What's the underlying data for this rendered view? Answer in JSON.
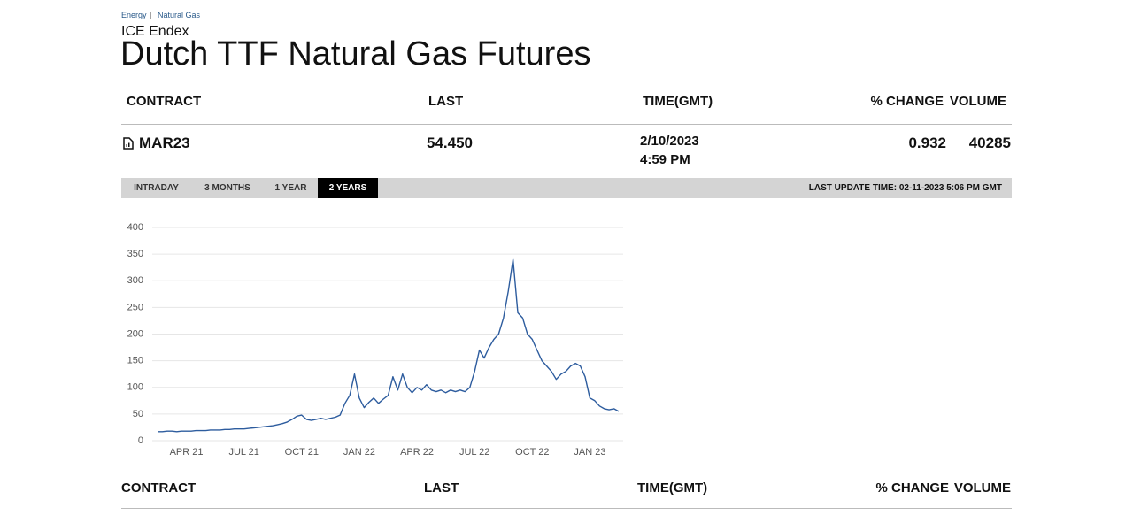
{
  "breadcrumb": [
    "Energy",
    "Natural Gas"
  ],
  "exchange": "ICE Endex",
  "title": "Dutch TTF Natural Gas Futures",
  "table": {
    "headers": [
      "CONTRACT",
      "LAST",
      "TIME(GMT)",
      "% CHANGE",
      "VOLUME"
    ],
    "rows": [
      {
        "contract": "MAR23",
        "last": "54.450",
        "time": [
          "2/10/2023",
          "4:59 PM"
        ],
        "change": "0.932",
        "volume": "40285"
      }
    ]
  },
  "tabs": [
    "INTRADAY",
    "3 MONTHS",
    "1 YEAR",
    "2 YEARS"
  ],
  "active_tab": 3,
  "last_update": "LAST UPDATE TIME: 02-11-2023 5:06 PM GMT",
  "chart_data": {
    "type": "line",
    "color": "#2d5c9e",
    "grid": true,
    "categories": [
      null,
      null,
      null,
      null,
      null,
      null,
      "APR 21",
      null,
      null,
      null,
      null,
      null,
      null,
      null,
      null,
      null,
      null,
      null,
      "JUL 21",
      null,
      null,
      null,
      null,
      null,
      null,
      null,
      null,
      null,
      null,
      null,
      "OCT 21",
      null,
      null,
      null,
      null,
      null,
      null,
      null,
      null,
      null,
      null,
      null,
      "JAN 22",
      null,
      null,
      null,
      null,
      null,
      null,
      null,
      null,
      null,
      null,
      null,
      "APR 22",
      null,
      null,
      null,
      null,
      null,
      null,
      null,
      null,
      null,
      null,
      null,
      "JUL 22",
      null,
      null,
      null,
      null,
      null,
      null,
      null,
      null,
      null,
      null,
      null,
      "OCT 22",
      null,
      null,
      null,
      null,
      null,
      null,
      null,
      null,
      null,
      null,
      null,
      "JAN 23",
      null,
      null,
      null,
      null,
      null,
      null
    ],
    "values": [
      17,
      17,
      18,
      18,
      17,
      18,
      18,
      18,
      19,
      19,
      19,
      20,
      20,
      20,
      21,
      21,
      22,
      22,
      22,
      23,
      24,
      25,
      26,
      27,
      28,
      30,
      32,
      35,
      40,
      46,
      48,
      40,
      38,
      40,
      42,
      40,
      42,
      44,
      48,
      70,
      85,
      125,
      80,
      62,
      72,
      80,
      70,
      78,
      85,
      120,
      95,
      125,
      100,
      90,
      100,
      95,
      105,
      95,
      92,
      95,
      90,
      95,
      92,
      95,
      92,
      100,
      130,
      170,
      155,
      175,
      190,
      200,
      230,
      280,
      340,
      240,
      230,
      200,
      190,
      170,
      150,
      140,
      130,
      115,
      125,
      130,
      140,
      145,
      140,
      120,
      80,
      75,
      65,
      60,
      58,
      60,
      55
    ],
    "ylim": [
      0,
      400
    ],
    "yticks": [
      0,
      50,
      100,
      150,
      200,
      250,
      300,
      350,
      400
    ]
  },
  "bottom_table": {
    "headers": [
      "CONTRACT",
      "LAST",
      "TIME(GMT)",
      "% CHANGE",
      "VOLUME"
    ]
  }
}
